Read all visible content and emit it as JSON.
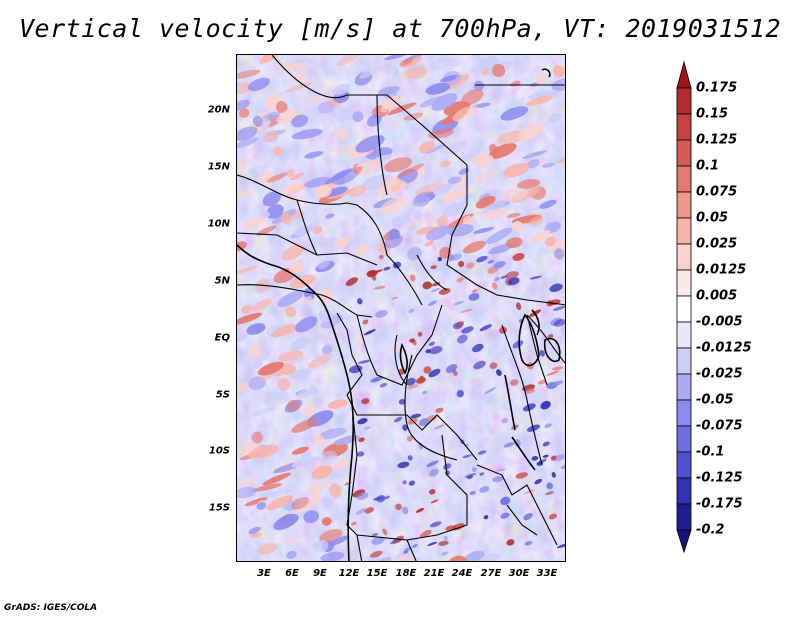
{
  "title": "Vertical velocity [m/s] at 700hPa, VT: 2019031512",
  "footer": "GrADS: IGES/COLA",
  "map": {
    "variable": "Vertical velocity",
    "units": "m/s",
    "level": "700hPa",
    "valid_time": "2019031512",
    "lat_labels": [
      "20N",
      "15N",
      "10N",
      "5N",
      "EQ",
      "5S",
      "10S",
      "15S"
    ],
    "lat_values": [
      20,
      15,
      10,
      5,
      0,
      -5,
      -10,
      -15
    ],
    "lon_labels": [
      "3E",
      "6E",
      "9E",
      "12E",
      "15E",
      "18E",
      "21E",
      "24E",
      "27E",
      "30E",
      "33E"
    ],
    "lon_values": [
      3,
      6,
      9,
      12,
      15,
      18,
      21,
      24,
      27,
      30,
      33
    ],
    "extent": {
      "lon_min": 0,
      "lon_max": 34.5,
      "lat_min": -19.5,
      "lat_max": 25
    }
  },
  "colorbar": {
    "levels": [
      "0.175",
      "0.15",
      "0.125",
      "0.1",
      "0.075",
      "0.05",
      "0.025",
      "0.0125",
      "0.005",
      "-0.005",
      "-0.0125",
      "-0.025",
      "-0.05",
      "-0.075",
      "-0.1",
      "-0.125",
      "-0.175",
      "-0.2"
    ],
    "colors": [
      "#a0141e",
      "#b42d2d",
      "#c8413c",
      "#d75a50",
      "#e6786e",
      "#f0968c",
      "#f7b4aa",
      "#fcd2cc",
      "#fdeae6",
      "#ffffff",
      "#e8e8fc",
      "#cdcdfa",
      "#aaaaf5",
      "#8c8cf0",
      "#6e6ee6",
      "#5050d2",
      "#3232b4",
      "#1e1e96",
      "#14147d"
    ]
  }
}
